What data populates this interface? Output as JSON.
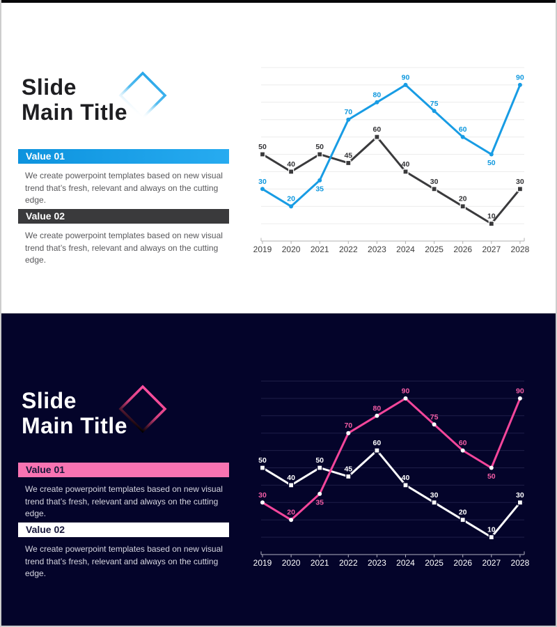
{
  "slides": [
    {
      "name": "light-slide",
      "title_line1": "Slide",
      "title_line2": "Main Title",
      "items": [
        {
          "label": "Value 01",
          "description": "We create powerpoint templates based on new visual trend that’s fresh, relevant and always on the cutting edge."
        },
        {
          "label": "Value 02",
          "description": "We create powerpoint templates based on new visual trend that’s fresh, relevant and always on the cutting edge."
        }
      ],
      "theme": {
        "bg": "#ffffff",
        "title_color": "#1e1e21",
        "body_color": "#58585b",
        "bar1_from": "#0d93de",
        "bar1_to": "#27abf0",
        "bar1_text": "#ffffff",
        "bar2_bg": "#3a3a3c",
        "bar2_text": "#ffffff",
        "diamond_from": "#27a6e9",
        "diamond_mid": "#55bdf0",
        "diamond_to": "rgba(255,255,255,0)",
        "chart": {
          "grid_color": "#ececec",
          "axis_color": "#b0b0b0",
          "tick_label_color": "#3e3e3e",
          "series": [
            {
              "line": "#189ce4",
              "marker": "circle",
              "marker_fill": "#189ce4",
              "marker_stroke": "none",
              "label_color": "#0f98de"
            },
            {
              "line": "#3a3a3c",
              "marker": "square",
              "marker_fill": "#3a3a3c",
              "marker_stroke": "#ffffff",
              "label_color": "#333336"
            }
          ]
        }
      }
    },
    {
      "name": "dark-slide",
      "title_line1": "Slide",
      "title_line2": "Main Title",
      "items": [
        {
          "label": "Value 01",
          "description": "We create powerpoint templates based on new visual trend that’s fresh, relevant and always on the cutting edge."
        },
        {
          "label": "Value 02",
          "description": "We create powerpoint templates based on new visual trend that’s fresh, relevant and always on the cutting edge."
        }
      ],
      "theme": {
        "bg": "#04042a",
        "title_color": "#ffffff",
        "body_color": "#d6d6e0",
        "bar1_from": "#f973b2",
        "bar1_to": "#f973b2",
        "bar1_text": "#15153a",
        "bar2_bg": "#ffffff",
        "bar2_text": "#15153a",
        "diamond_from": "#ff4fa1",
        "diamond_mid": "#d6417f",
        "diamond_to": "#000000",
        "chart": {
          "grid_color": "#1f1f49",
          "axis_color": "#b0b0c0",
          "tick_label_color": "#ffffff",
          "series": [
            {
              "line": "#f4469b",
              "marker": "circle",
              "marker_fill": "#ffffff",
              "marker_stroke": "none",
              "label_color": "#f45da6"
            },
            {
              "line": "#ffffff",
              "marker": "square",
              "marker_fill": "#ffffff",
              "marker_stroke": "#04042a",
              "label_color": "#ffffff"
            }
          ]
        }
      }
    }
  ],
  "chart_data": {
    "type": "line",
    "categories": [
      "2019",
      "2020",
      "2021",
      "2022",
      "2023",
      "2024",
      "2025",
      "2026",
      "2027",
      "2028"
    ],
    "series": [
      {
        "values": [
          30,
          20,
          35,
          70,
          80,
          90,
          75,
          60,
          50,
          90
        ],
        "below_labels": [
          2,
          8
        ]
      },
      {
        "values": [
          50,
          40,
          50,
          45,
          60,
          40,
          30,
          20,
          10,
          30
        ],
        "below_labels": []
      }
    ],
    "ylim": [
      0,
      100
    ],
    "grid_step": 10,
    "title": "",
    "xlabel": "",
    "ylabel": ""
  }
}
